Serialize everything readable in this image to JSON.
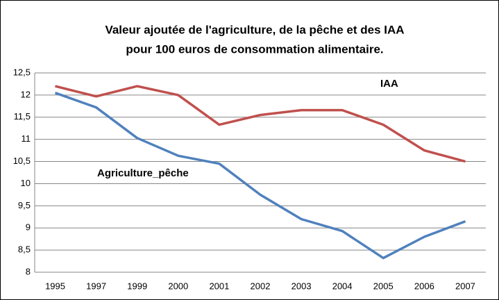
{
  "chart_data": {
    "type": "line",
    "title": [
      "Valeur ajoutée de l'agriculture, de la pêche et des IAA",
      "pour 100 euros de consommation alimentaire."
    ],
    "categories": [
      "1995",
      "1997",
      "1999",
      "2000",
      "2001",
      "2002",
      "2003",
      "2004",
      "2005",
      "2006",
      "2007"
    ],
    "series": [
      {
        "name": "IAA",
        "color": "#c0504d",
        "values": [
          12.2,
          11.97,
          12.2,
          12.0,
          11.33,
          11.55,
          11.66,
          11.66,
          11.33,
          10.75,
          10.5
        ]
      },
      {
        "name": "Agriculture_pêche",
        "color": "#4f81bd",
        "values": [
          12.05,
          11.72,
          11.03,
          10.63,
          10.45,
          9.75,
          9.2,
          8.93,
          8.32,
          8.8,
          9.15
        ]
      }
    ],
    "ylim": [
      8,
      12.5
    ],
    "yticks": [
      8,
      {
        "value": 8.5,
        "label": "8,5"
      },
      9,
      {
        "value": 9.5,
        "label": "9,5"
      },
      10,
      {
        "value": 10.5,
        "label": "10,5"
      },
      11,
      {
        "value": 11.5,
        "label": "11,5"
      },
      12,
      {
        "value": 12.5,
        "label": "12,5"
      }
    ],
    "grid": true
  }
}
